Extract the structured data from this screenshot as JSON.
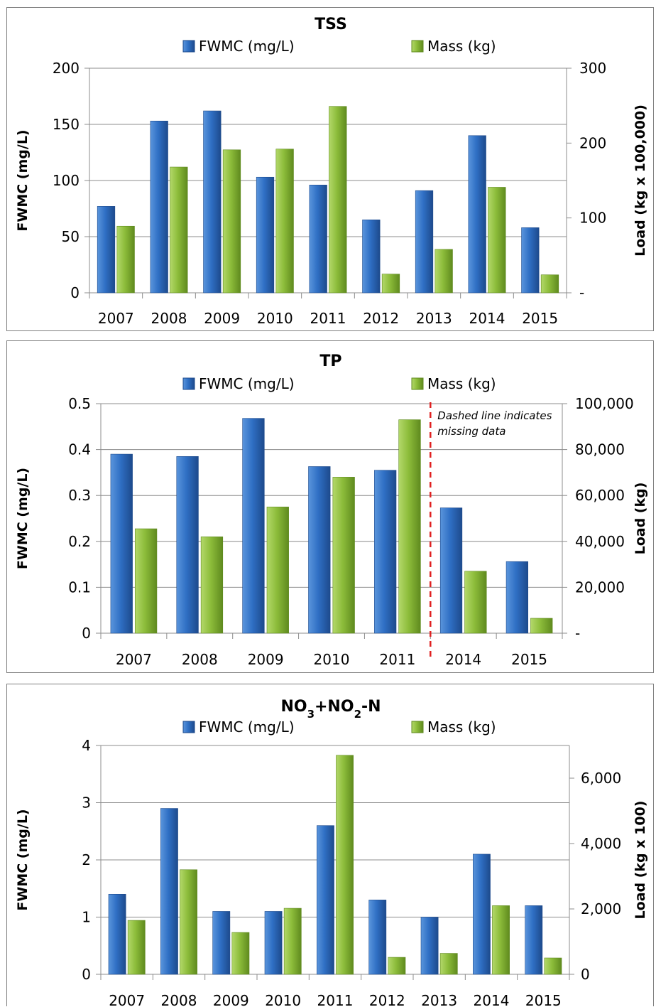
{
  "legend": {
    "fwmc": "FWMC (mg/L)",
    "mass": "Mass (kg)"
  },
  "colors": {
    "fwmc": "#2f6fc4",
    "fwmc_dark": "#1d4a8c",
    "mass": "#8cbc3a",
    "mass_dark": "#5f8a1e",
    "grid": "#8c8c8c",
    "dashed": "#e02020"
  },
  "chart_data": [
    {
      "id": "tss",
      "type": "bar",
      "title": "TSS",
      "ylabel": "FWMC (mg/L)",
      "y2label": "Load (kg x 100,000)",
      "categories": [
        "2007",
        "2008",
        "2009",
        "2010",
        "2011",
        "2012",
        "2013",
        "2014",
        "2015"
      ],
      "series": [
        {
          "name": "FWMC (mg/L)",
          "axis": "left",
          "values": [
            77,
            153,
            162,
            103,
            96,
            65,
            91,
            140,
            58
          ]
        },
        {
          "name": "Mass (kg)",
          "axis": "right",
          "values": [
            89,
            168,
            191,
            192,
            249,
            25,
            58,
            141,
            24
          ]
        }
      ],
      "ylim": [
        0,
        200
      ],
      "yticks": [
        "0",
        "50",
        "100",
        "150",
        "200"
      ],
      "y2lim": [
        0,
        300
      ],
      "y2ticks": [
        "-",
        "100",
        "200",
        "300"
      ],
      "grid": true,
      "legend_position": "top"
    },
    {
      "id": "tp",
      "type": "bar",
      "title": "TP",
      "ylabel": "FWMC (mg/L)",
      "y2label": "Load (kg)",
      "categories": [
        "2007",
        "2008",
        "2009",
        "2010",
        "2011",
        "2014",
        "2015"
      ],
      "series": [
        {
          "name": "FWMC (mg/L)",
          "axis": "left",
          "values": [
            0.39,
            0.385,
            0.468,
            0.363,
            0.355,
            0.273,
            0.156
          ]
        },
        {
          "name": "Mass (kg)",
          "axis": "right",
          "values": [
            45500,
            42000,
            55000,
            68000,
            93000,
            27000,
            6500
          ]
        }
      ],
      "ylim": [
        0,
        0.5
      ],
      "yticks": [
        "0",
        "0.1",
        "0.2",
        "0.3",
        "0.4",
        "0.5"
      ],
      "y2lim": [
        0,
        100000
      ],
      "y2ticks": [
        "-",
        "20,000",
        "40,000",
        "60,000",
        "80,000",
        "100,000"
      ],
      "grid": true,
      "legend_position": "top",
      "annotation": {
        "after_category": "2011",
        "lines": [
          "Dashed line indicates",
          "missing data"
        ]
      }
    },
    {
      "id": "no3",
      "type": "bar",
      "title_parts": {
        "a": "NO",
        "sub1": "3",
        "b": "+NO",
        "sub2": "2",
        "c": "-N"
      },
      "ylabel": "FWMC (mg/L)",
      "y2label": "Load (kg x 100)",
      "categories": [
        "2007",
        "2008",
        "2009",
        "2010",
        "2011",
        "2012",
        "2013",
        "2014",
        "2015"
      ],
      "series": [
        {
          "name": "FWMC (mg/L)",
          "axis": "left",
          "values": [
            1.4,
            2.9,
            1.1,
            1.1,
            2.6,
            1.3,
            1.0,
            2.1,
            1.2
          ]
        },
        {
          "name": "Mass (kg)",
          "axis": "right",
          "values": [
            1650,
            3200,
            1280,
            2020,
            6700,
            520,
            640,
            2100,
            500
          ]
        }
      ],
      "ylim": [
        0,
        4
      ],
      "yticks": [
        "0",
        "1",
        "2",
        "3",
        "4"
      ],
      "y2lim": [
        0,
        7000
      ],
      "y2ticks": [
        "0",
        "2,000",
        "4,000",
        "6,000"
      ],
      "y2tick_values": [
        0,
        2000,
        4000,
        6000
      ],
      "grid": true,
      "legend_position": "top"
    }
  ]
}
